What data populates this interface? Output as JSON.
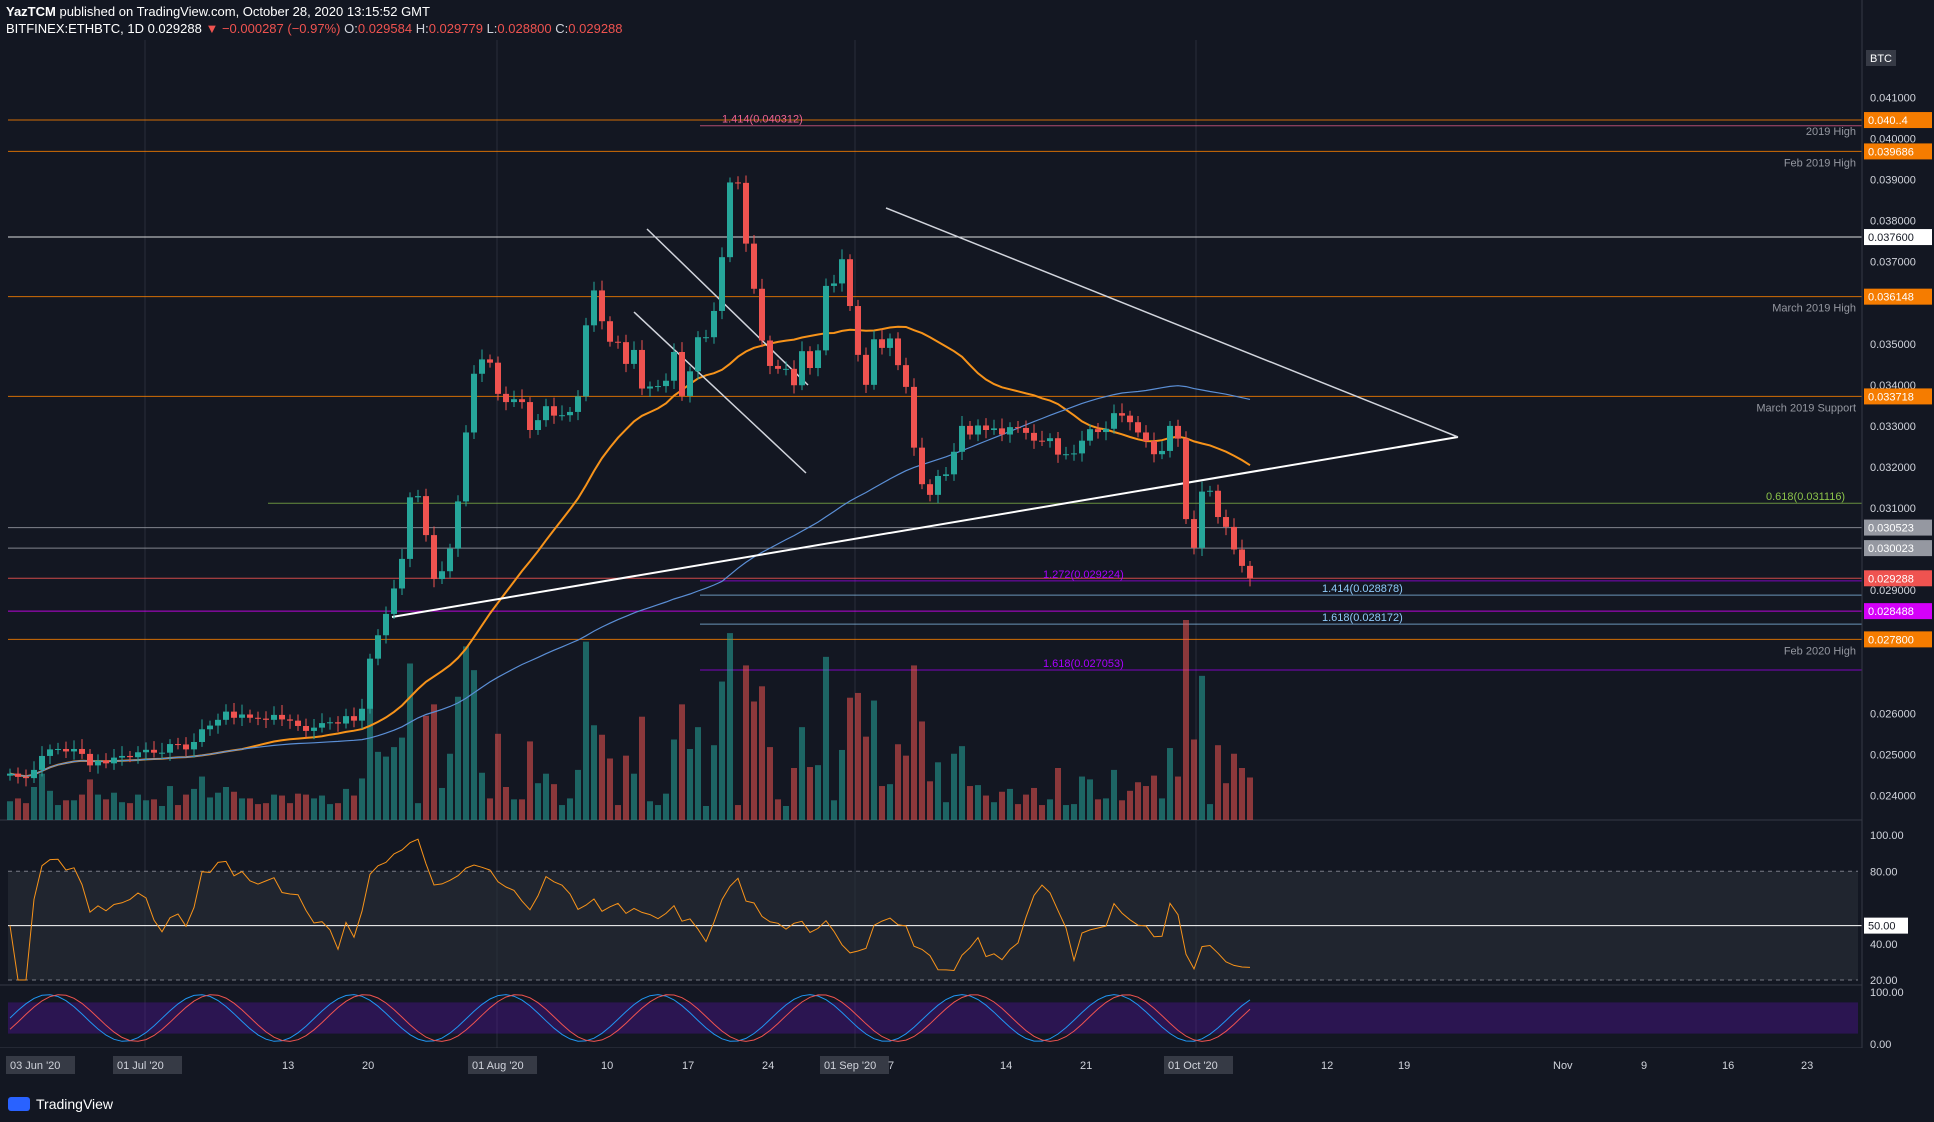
{
  "header": {
    "author": "YazTCM",
    "published": "published on TradingView.com, October 28, 2020 13:15:52 GMT",
    "symbol": "BITFINEX:ETHBTC, 1D",
    "last": "0.029288",
    "change": "−0.000287 (−0.97%)",
    "open_label": "O:",
    "open": "0.029584",
    "high_label": "H:",
    "high": "0.029779",
    "low_label": "L:",
    "low": "0.028800",
    "close_label": "C:",
    "close": "0.029288"
  },
  "brand": "TradingView",
  "currency_badge": "BTC",
  "colors": {
    "bg": "#131722",
    "up": "#26a69a",
    "down": "#ef5350",
    "orange": "#f57c00",
    "magenta": "#d500f9",
    "purple": "#aa00ff",
    "ma_fast": "#f7931a",
    "ma_slow": "#5b8fd6",
    "grid": "#2a2e39"
  },
  "chart_data": [
    {
      "type": "candlestick",
      "title": "BITFINEX:ETHBTC, 1D",
      "yaxis_ticks": [
        "0.041000",
        "0.040000",
        "0.039000",
        "0.038000",
        "0.037000",
        "0.035000",
        "0.034000",
        "0.033000",
        "0.032000",
        "0.031000",
        "0.029000",
        "0.026000",
        "0.025000",
        "0.024000"
      ],
      "ylim": [
        0.0234,
        0.0424
      ],
      "xaxis_ticks": [
        "03 Jun '20",
        "01 Jul '20",
        "13",
        "20",
        "01 Aug '20",
        "10",
        "17",
        "24",
        "01 Sep '20",
        "7",
        "14",
        "21",
        "01 Oct '20",
        "12",
        "19",
        "Nov",
        "9",
        "16",
        "23"
      ],
      "price_labels": [
        {
          "text": "2019 High",
          "value": 0.04045,
          "price": "0.040..4",
          "color": "#f57c00"
        },
        {
          "text": "Feb 2019 High",
          "value": 0.039686,
          "price": "0.039686",
          "color": "#f57c00"
        },
        {
          "text": "",
          "value": 0.0376,
          "price": "0.037600",
          "color": "#ffffff"
        },
        {
          "text": "March 2019 High",
          "value": 0.036148,
          "price": "0.036148",
          "color": "#f57c00"
        },
        {
          "text": "March 2019 Support",
          "value": 0.033718,
          "price": "0.033718",
          "color": "#f57c00"
        },
        {
          "text": "",
          "value": 0.030523,
          "price": "0.030523",
          "color": "#9598a1"
        },
        {
          "text": "",
          "value": 0.030023,
          "price": "0.030023",
          "color": "#9598a1"
        },
        {
          "text": "",
          "value": 0.029288,
          "price": "0.029288",
          "color": "#ef5350"
        },
        {
          "text": "",
          "value": 0.028488,
          "price": "0.028488",
          "color": "#d500f9"
        },
        {
          "text": "Feb 2020 High",
          "value": 0.0278,
          "price": "0.027800",
          "color": "#f57c00"
        }
      ],
      "fib_labels": [
        {
          "text": "1.414(0.040312)",
          "value": 0.040312,
          "color": "#f06292"
        },
        {
          "text": "0.618(0.031116)",
          "value": 0.031116,
          "color": "#8bc34a"
        },
        {
          "text": "1.272(0.029224)",
          "value": 0.029224,
          "color": "#aa00ff"
        },
        {
          "text": "1.414(0.028878)",
          "value": 0.028878,
          "color": "#90caf9"
        },
        {
          "text": "1.618(0.028172)",
          "value": 0.028172,
          "color": "#90caf9"
        },
        {
          "text": "1.618(0.027053)",
          "value": 0.027053,
          "color": "#aa00ff"
        }
      ],
      "closes": [
        0.02453,
        0.02445,
        0.02442,
        0.02462,
        0.02496,
        0.02512,
        0.02513,
        0.02507,
        0.02513,
        0.02501,
        0.02473,
        0.02485,
        0.02478,
        0.02492,
        0.02496,
        0.02493,
        0.02505,
        0.02511,
        0.02504,
        0.02504,
        0.02525,
        0.02524,
        0.02512,
        0.0253,
        0.02561,
        0.0257,
        0.02584,
        0.02604,
        0.02589,
        0.02597,
        0.02589,
        0.02587,
        0.02584,
        0.02596,
        0.02585,
        0.02582,
        0.02569,
        0.02557,
        0.02565,
        0.02576,
        0.02578,
        0.02575,
        0.02593,
        0.02582,
        0.02611,
        0.02733,
        0.0279,
        0.02842,
        0.02904,
        0.02976,
        0.03126,
        0.03129,
        0.03034,
        0.02927,
        0.02946,
        0.03001,
        0.03116,
        0.03284,
        0.03427,
        0.03462,
        0.03454,
        0.03378,
        0.03358,
        0.03365,
        0.03358,
        0.0329,
        0.03314,
        0.03348,
        0.03325,
        0.03326,
        0.03334,
        0.03372,
        0.03545,
        0.0363,
        0.03555,
        0.03505,
        0.03504,
        0.03451,
        0.03485,
        0.03391,
        0.03396,
        0.03397,
        0.0341,
        0.0348,
        0.03373,
        0.03433,
        0.03516,
        0.03516,
        0.0358,
        0.03711,
        0.03893,
        0.03892,
        0.03744,
        0.03634,
        0.03508,
        0.03446,
        0.03439,
        0.03439,
        0.03399,
        0.03482,
        0.03441,
        0.03484,
        0.03641,
        0.03647,
        0.03706,
        0.03592,
        0.03473,
        0.034,
        0.03511,
        0.0349,
        0.03513,
        0.03448,
        0.03395,
        0.03247,
        0.03158,
        0.03132,
        0.03178,
        0.03182,
        0.03237,
        0.033,
        0.03279,
        0.03301,
        0.0329,
        0.03294,
        0.03279,
        0.03297,
        0.03295,
        0.03283,
        0.03264,
        0.03263,
        0.0327,
        0.0323,
        0.03231,
        0.03233,
        0.03264,
        0.03292,
        0.03285,
        0.03293,
        0.03331,
        0.03325,
        0.03309,
        0.03284,
        0.03263,
        0.03231,
        0.03239,
        0.033,
        0.03269,
        0.03073,
        0.03003,
        0.0314,
        0.03142,
        0.03078,
        0.03054,
        0.02999,
        0.02959,
        0.02929
      ],
      "annotations": []
    },
    {
      "type": "line",
      "title": "RSI",
      "yaxis_ticks": [
        "100.00",
        "80.00",
        "50.00",
        "40.00",
        "20.00"
      ],
      "ylim": [
        20,
        100
      ],
      "last_value_label": "50.00"
    },
    {
      "type": "line",
      "title": "Stochastic RSI",
      "yaxis_ticks": [
        "100.00",
        "0.00"
      ],
      "ylim": [
        0,
        100
      ]
    }
  ]
}
